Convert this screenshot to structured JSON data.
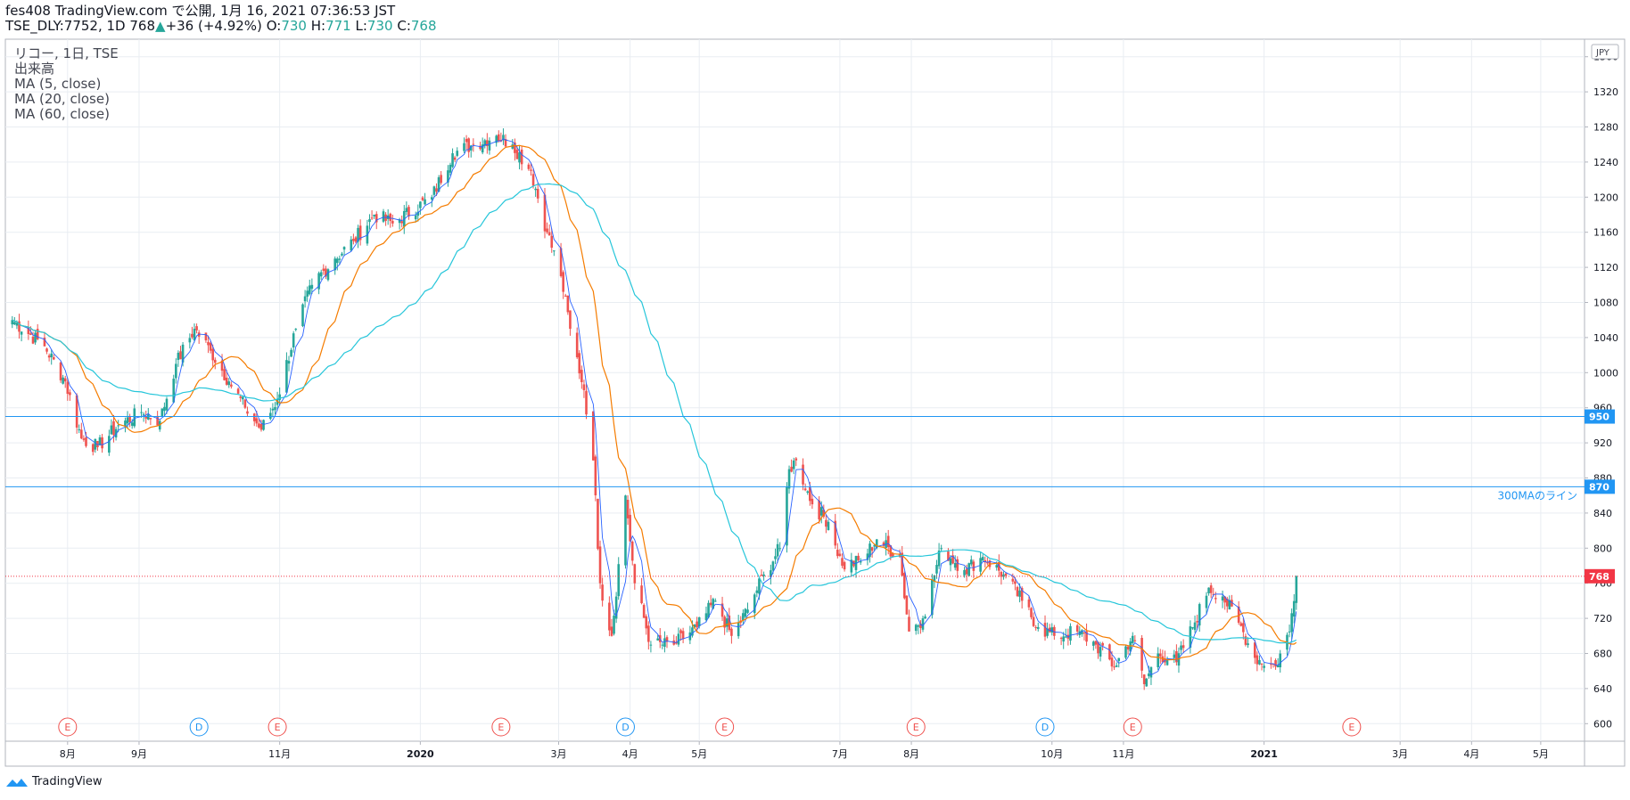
{
  "header": {
    "publish_line": "fes408 TradingView.com で公開, 1月 16, 2021 07:36:53 JST",
    "symbol": "TSE_DLY:7752, 1D 768",
    "change": "+36 (+4.92%)",
    "o_label": "O:",
    "o_value": "730",
    "h_label": "H:",
    "h_value": "771",
    "l_label": "L:",
    "l_value": "730",
    "c_label": "C:",
    "c_value": "768"
  },
  "legend": {
    "title": "リコー, 1日, TSE",
    "volume": "出来高",
    "ma5": "MA (5, close)",
    "ma20": "MA (20, close)",
    "ma60": "MA (60, close)"
  },
  "footer": {
    "brand": "TradingView"
  },
  "colors": {
    "up": "#26a69a",
    "down": "#ef5350",
    "ma5": "#2962ff",
    "ma20": "#f57c00",
    "ma60": "#26c6da",
    "hline": "#2196f3",
    "grid": "#e9edf2",
    "price": "#f23645"
  },
  "chart_data": {
    "type": "candlestick",
    "currency": "JPY",
    "ylim": [
      580,
      1380
    ],
    "y_ticks": [
      600,
      640,
      680,
      720,
      760,
      800,
      840,
      880,
      920,
      960,
      1000,
      1040,
      1080,
      1120,
      1160,
      1200,
      1240,
      1280,
      1320,
      1360
    ],
    "x_range": [
      "2019-07-05",
      "2021-05-20"
    ],
    "x_ticks": [
      {
        "date": "2019-08-01",
        "label": "8月",
        "bold": false
      },
      {
        "date": "2019-09-01",
        "label": "9月",
        "bold": false
      },
      {
        "date": "2019-11-01",
        "label": "11月",
        "bold": false
      },
      {
        "date": "2020-01-01",
        "label": "2020",
        "bold": true
      },
      {
        "date": "2020-03-01",
        "label": "3月",
        "bold": false
      },
      {
        "date": "2020-04-01",
        "label": "4月",
        "bold": false
      },
      {
        "date": "2020-05-01",
        "label": "5月",
        "bold": false
      },
      {
        "date": "2020-07-01",
        "label": "7月",
        "bold": false
      },
      {
        "date": "2020-08-01",
        "label": "8月",
        "bold": false
      },
      {
        "date": "2020-10-01",
        "label": "10月",
        "bold": false
      },
      {
        "date": "2020-11-01",
        "label": "11月",
        "bold": false
      },
      {
        "date": "2021-01-01",
        "label": "2021",
        "bold": true
      },
      {
        "date": "2021-03-01",
        "label": "3月",
        "bold": false
      },
      {
        "date": "2021-04-01",
        "label": "4月",
        "bold": false
      },
      {
        "date": "2021-05-01",
        "label": "5月",
        "bold": false
      }
    ],
    "close_path": [
      [
        "2019-07-08",
        1060
      ],
      [
        "2019-07-22",
        1030
      ],
      [
        "2019-07-31",
        990
      ],
      [
        "2019-08-07",
        925
      ],
      [
        "2019-08-14",
        915
      ],
      [
        "2019-08-23",
        940
      ],
      [
        "2019-09-02",
        955
      ],
      [
        "2019-09-10",
        945
      ],
      [
        "2019-09-17",
        1010
      ],
      [
        "2019-09-25",
        1050
      ],
      [
        "2019-10-02",
        1025
      ],
      [
        "2019-10-10",
        990
      ],
      [
        "2019-10-17",
        960
      ],
      [
        "2019-10-24",
        935
      ],
      [
        "2019-10-31",
        970
      ],
      [
        "2019-11-08",
        1050
      ],
      [
        "2019-11-15",
        1100
      ],
      [
        "2019-11-25",
        1130
      ],
      [
        "2019-12-03",
        1150
      ],
      [
        "2019-12-12",
        1180
      ],
      [
        "2019-12-20",
        1170
      ],
      [
        "2020-01-06",
        1200
      ],
      [
        "2020-01-15",
        1250
      ],
      [
        "2020-01-24",
        1260
      ],
      [
        "2020-02-03",
        1270
      ],
      [
        "2020-02-10",
        1260
      ],
      [
        "2020-02-18",
        1230
      ],
      [
        "2020-02-25",
        1160
      ],
      [
        "2020-03-02",
        1110
      ],
      [
        "2020-03-06",
        1050
      ],
      [
        "2020-03-12",
        980
      ],
      [
        "2020-03-16",
        900
      ],
      [
        "2020-03-19",
        760
      ],
      [
        "2020-03-24",
        700
      ],
      [
        "2020-03-30",
        860
      ],
      [
        "2020-04-03",
        760
      ],
      [
        "2020-04-10",
        690
      ],
      [
        "2020-04-20",
        690
      ],
      [
        "2020-04-30",
        710
      ],
      [
        "2020-05-08",
        740
      ],
      [
        "2020-05-15",
        700
      ],
      [
        "2020-05-22",
        730
      ],
      [
        "2020-05-29",
        770
      ],
      [
        "2020-06-05",
        800
      ],
      [
        "2020-06-09",
        890
      ],
      [
        "2020-06-12",
        900
      ],
      [
        "2020-06-19",
        850
      ],
      [
        "2020-06-26",
        830
      ],
      [
        "2020-07-02",
        780
      ],
      [
        "2020-07-10",
        785
      ],
      [
        "2020-07-17",
        810
      ],
      [
        "2020-07-27",
        790
      ],
      [
        "2020-07-31",
        705
      ],
      [
        "2020-08-06",
        720
      ],
      [
        "2020-08-14",
        800
      ],
      [
        "2020-08-24",
        775
      ],
      [
        "2020-09-01",
        790
      ],
      [
        "2020-09-10",
        770
      ],
      [
        "2020-09-18",
        740
      ],
      [
        "2020-09-25",
        710
      ],
      [
        "2020-10-02",
        700
      ],
      [
        "2020-10-12",
        705
      ],
      [
        "2020-10-20",
        690
      ],
      [
        "2020-10-28",
        665
      ],
      [
        "2020-11-05",
        700
      ],
      [
        "2020-11-10",
        645
      ],
      [
        "2020-11-16",
        680
      ],
      [
        "2020-11-24",
        670
      ],
      [
        "2020-12-01",
        710
      ],
      [
        "2020-12-08",
        755
      ],
      [
        "2020-12-14",
        745
      ],
      [
        "2020-12-21",
        715
      ],
      [
        "2020-12-28",
        675
      ],
      [
        "2021-01-06",
        665
      ],
      [
        "2021-01-12",
        705
      ],
      [
        "2021-01-15",
        768
      ]
    ],
    "series": [
      {
        "name": "MA (5, close)",
        "color": "#2962ff",
        "style": "thin"
      },
      {
        "name": "MA (20, close)",
        "color": "#f57c00",
        "style": "normal"
      },
      {
        "name": "MA (60, close)",
        "color": "#26c6da",
        "style": "normal"
      }
    ],
    "horizontal_lines": [
      {
        "value": 950,
        "label": "950",
        "note": ""
      },
      {
        "value": 870,
        "label": "870",
        "note": "300MAのライン"
      }
    ],
    "last_price": {
      "value": 768,
      "label": "768"
    },
    "events": [
      {
        "date": "2019-08-01",
        "type": "E"
      },
      {
        "date": "2019-09-27",
        "type": "D"
      },
      {
        "date": "2019-10-31",
        "type": "E"
      },
      {
        "date": "2020-02-05",
        "type": "E"
      },
      {
        "date": "2020-03-30",
        "type": "D"
      },
      {
        "date": "2020-05-12",
        "type": "E"
      },
      {
        "date": "2020-08-03",
        "type": "E"
      },
      {
        "date": "2020-09-28",
        "type": "D"
      },
      {
        "date": "2020-11-05",
        "type": "E"
      },
      {
        "date": "2021-02-08",
        "type": "E"
      }
    ]
  }
}
